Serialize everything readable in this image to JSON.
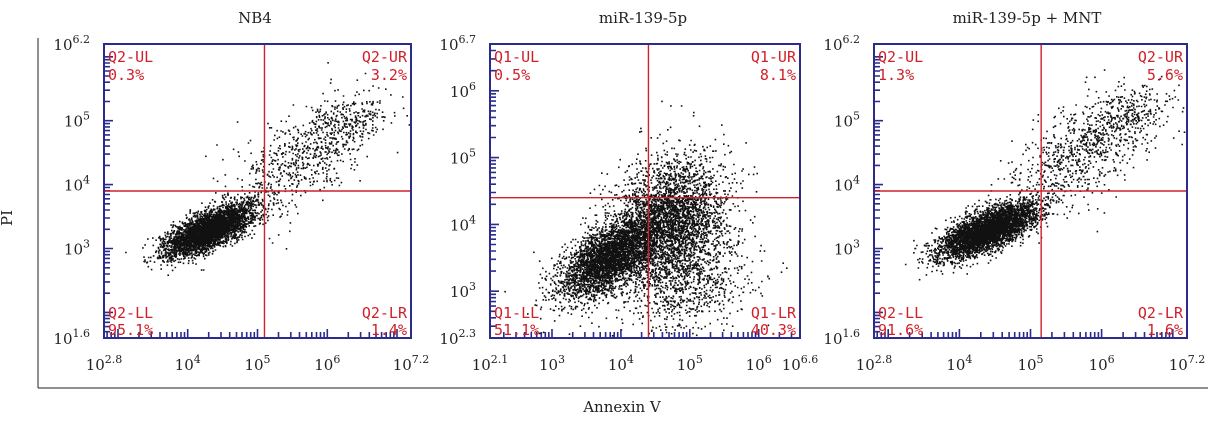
{
  "figure": {
    "ylabel": "PI",
    "xlabel": "Annexin V"
  },
  "colors": {
    "frame": "#2b2b8c",
    "gate": "#d0202a",
    "gate_text": "#d0202a",
    "dots": "#111111",
    "text": "#222222"
  },
  "chart_data": [
    {
      "type": "scatter",
      "title": "NB4",
      "x_scale": "log",
      "y_scale": "log",
      "xlim_exp": [
        2.8,
        7.2
      ],
      "ylim_exp": [
        1.6,
        6.2
      ],
      "x_ticks": [
        {
          "exp": 2.8,
          "base": "10",
          "sup": "2.8"
        },
        {
          "exp": 4,
          "base": "10",
          "sup": "4"
        },
        {
          "exp": 5,
          "base": "10",
          "sup": "5"
        },
        {
          "exp": 6,
          "base": "10",
          "sup": "6"
        },
        {
          "exp": 7.2,
          "base": "10",
          "sup": "7.2"
        }
      ],
      "y_ticks": [
        {
          "exp": 1.6,
          "base": "10",
          "sup": "1.6"
        },
        {
          "exp": 3,
          "base": "10",
          "sup": "3"
        },
        {
          "exp": 4,
          "base": "10",
          "sup": "4"
        },
        {
          "exp": 5,
          "base": "10",
          "sup": "5"
        },
        {
          "exp": 6.2,
          "base": "10",
          "sup": "6.2"
        }
      ],
      "gate_exp": {
        "x": 5.1,
        "y": 3.9
      },
      "quadrants": {
        "UL": {
          "name": "Q2-UL",
          "pct": "0.3%"
        },
        "UR": {
          "name": "Q2-UR",
          "pct": "3.2%"
        },
        "LL": {
          "name": "Q2-LL",
          "pct": "95.1%"
        },
        "LR": {
          "name": "Q2-LR",
          "pct": "1.4%"
        }
      },
      "populations": [
        {
          "cx": 4.3,
          "cy": 3.3,
          "sx": 0.3,
          "sy": 0.2,
          "rho": 0.7,
          "n": 4200
        },
        {
          "cx": 5.6,
          "cy": 4.4,
          "sx": 0.5,
          "sy": 0.45,
          "rho": 0.6,
          "n": 650
        },
        {
          "cx": 6.3,
          "cy": 5.0,
          "sx": 0.3,
          "sy": 0.2,
          "rho": 0.3,
          "n": 220
        }
      ]
    },
    {
      "type": "scatter",
      "title": "miR-139-5p",
      "x_scale": "log",
      "y_scale": "log",
      "xlim_exp": [
        2.1,
        6.6
      ],
      "ylim_exp": [
        2.3,
        6.7
      ],
      "x_ticks": [
        {
          "exp": 2.1,
          "base": "10",
          "sup": "2.1"
        },
        {
          "exp": 3,
          "base": "10",
          "sup": "3"
        },
        {
          "exp": 4,
          "base": "10",
          "sup": "4"
        },
        {
          "exp": 5,
          "base": "10",
          "sup": "5"
        },
        {
          "exp": 6,
          "base": "10",
          "sup": "6"
        },
        {
          "exp": 6.6,
          "base": "10",
          "sup": "6.6"
        }
      ],
      "y_ticks": [
        {
          "exp": 2.3,
          "base": "10",
          "sup": "2.3"
        },
        {
          "exp": 3,
          "base": "10",
          "sup": "3"
        },
        {
          "exp": 4,
          "base": "10",
          "sup": "4"
        },
        {
          "exp": 5,
          "base": "10",
          "sup": "5"
        },
        {
          "exp": 6,
          "base": "10",
          "sup": "6"
        },
        {
          "exp": 6.7,
          "base": "10",
          "sup": "6.7"
        }
      ],
      "gate_exp": {
        "x": 4.4,
        "y": 4.4
      },
      "quadrants": {
        "UL": {
          "name": "Q1-UL",
          "pct": "0.5%"
        },
        "UR": {
          "name": "Q1-UR",
          "pct": "8.1%"
        },
        "LL": {
          "name": "Q1-LL",
          "pct": "51.1%"
        },
        "LR": {
          "name": "Q1-LR",
          "pct": "40.3%"
        }
      },
      "populations": [
        {
          "cx": 3.8,
          "cy": 3.5,
          "sx": 0.35,
          "sy": 0.3,
          "rho": 0.6,
          "n": 3500
        },
        {
          "cx": 4.7,
          "cy": 4.1,
          "sx": 0.4,
          "sy": 0.45,
          "rho": 0.2,
          "n": 3200
        },
        {
          "cx": 4.9,
          "cy": 3.2,
          "sx": 0.5,
          "sy": 0.4,
          "rho": 0.1,
          "n": 900
        }
      ]
    },
    {
      "type": "scatter",
      "title": "miR-139-5p + MNT",
      "x_scale": "log",
      "y_scale": "log",
      "xlim_exp": [
        2.8,
        7.2
      ],
      "ylim_exp": [
        1.6,
        6.2
      ],
      "x_ticks": [
        {
          "exp": 2.8,
          "base": "10",
          "sup": "2.8"
        },
        {
          "exp": 4,
          "base": "10",
          "sup": "4"
        },
        {
          "exp": 5,
          "base": "10",
          "sup": "5"
        },
        {
          "exp": 6,
          "base": "10",
          "sup": "6"
        },
        {
          "exp": 7.2,
          "base": "10",
          "sup": "7.2"
        }
      ],
      "y_ticks": [
        {
          "exp": 1.6,
          "base": "10",
          "sup": "1.6"
        },
        {
          "exp": 3,
          "base": "10",
          "sup": "3"
        },
        {
          "exp": 4,
          "base": "10",
          "sup": "4"
        },
        {
          "exp": 5,
          "base": "10",
          "sup": "5"
        },
        {
          "exp": 6.2,
          "base": "10",
          "sup": "6.2"
        }
      ],
      "gate_exp": {
        "x": 5.15,
        "y": 3.9
      },
      "quadrants": {
        "UL": {
          "name": "Q2-UL",
          "pct": "1.3%"
        },
        "UR": {
          "name": "Q2-UR",
          "pct": "5.6%"
        },
        "LL": {
          "name": "Q2-LL",
          "pct": "91.6%"
        },
        "LR": {
          "name": "Q2-LR",
          "pct": "1.6%"
        }
      },
      "populations": [
        {
          "cx": 4.4,
          "cy": 3.3,
          "sx": 0.35,
          "sy": 0.22,
          "rho": 0.7,
          "n": 4200
        },
        {
          "cx": 5.7,
          "cy": 4.5,
          "sx": 0.5,
          "sy": 0.45,
          "rho": 0.6,
          "n": 750
        },
        {
          "cx": 6.4,
          "cy": 5.1,
          "sx": 0.3,
          "sy": 0.25,
          "rho": 0.3,
          "n": 250
        }
      ]
    }
  ]
}
